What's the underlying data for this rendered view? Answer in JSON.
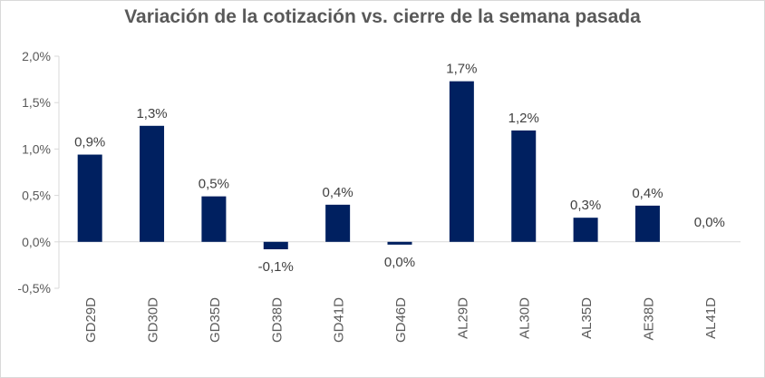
{
  "chart_data": {
    "type": "bar",
    "title": "Variación de la cotización vs. cierre de la semana pasada",
    "xlabel": "",
    "ylabel": "",
    "categories": [
      "GD29D",
      "GD30D",
      "GD35D",
      "GD38D",
      "GD41D",
      "GD46D",
      "AL29D",
      "AL30D",
      "AL35D",
      "AE38D",
      "AL41D"
    ],
    "values": [
      0.94,
      1.25,
      0.49,
      -0.08,
      0.4,
      -0.03,
      1.73,
      1.2,
      0.26,
      0.39,
      0.0
    ],
    "data_labels": [
      "0,9%",
      "1,3%",
      "0,5%",
      "-0,1%",
      "0,4%",
      "0,0%",
      "1,7%",
      "1,2%",
      "0,3%",
      "0,4%",
      "0,0%"
    ],
    "y_ticks": [
      2.0,
      1.5,
      1.0,
      0.5,
      0.0,
      -0.5
    ],
    "y_tick_labels": [
      "2,0%",
      "1,5%",
      "1,0%",
      "0,5%",
      "0,0%",
      "-0,5%"
    ],
    "ylim": [
      -0.5,
      2.0
    ],
    "grid": false,
    "legend": "none",
    "bar_color": "#002060",
    "axis_color": "#d9d9d9"
  }
}
